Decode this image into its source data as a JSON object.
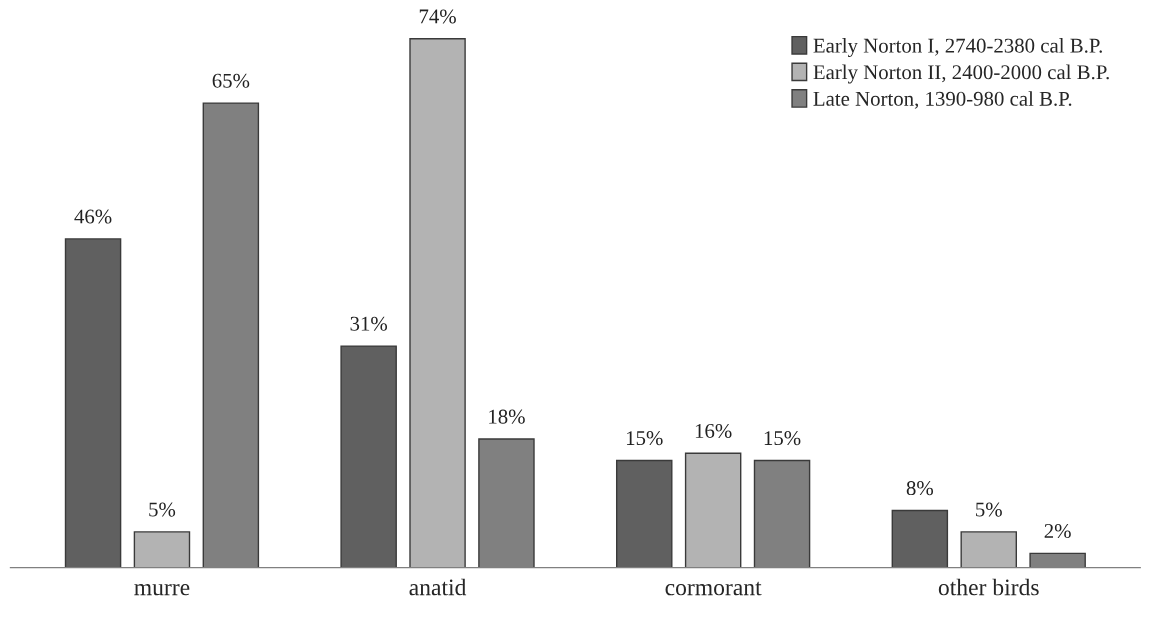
{
  "chart_data": {
    "type": "bar",
    "categories": [
      "murre",
      "anatid",
      "cormorant",
      "other birds"
    ],
    "series": [
      {
        "name": "Early Norton I, 2740-2380 cal B.P.",
        "color": "#606060",
        "values": [
          46,
          31,
          15,
          8
        ],
        "value_labels": [
          "46%",
          "31%",
          "15%",
          "8%"
        ]
      },
      {
        "name": "Early Norton II, 2400-2000 cal B.P.",
        "color": "#b3b3b3",
        "values": [
          5,
          74,
          16,
          5
        ],
        "value_labels": [
          "5%",
          "74%",
          "16%",
          "5%"
        ]
      },
      {
        "name": "Late Norton, 1390-980 cal B.P.",
        "color": "#808080",
        "values": [
          65,
          18,
          15,
          2
        ],
        "value_labels": [
          "65%",
          "18%",
          "15%",
          "2%"
        ]
      }
    ],
    "grid": false,
    "legend": "top right"
  }
}
